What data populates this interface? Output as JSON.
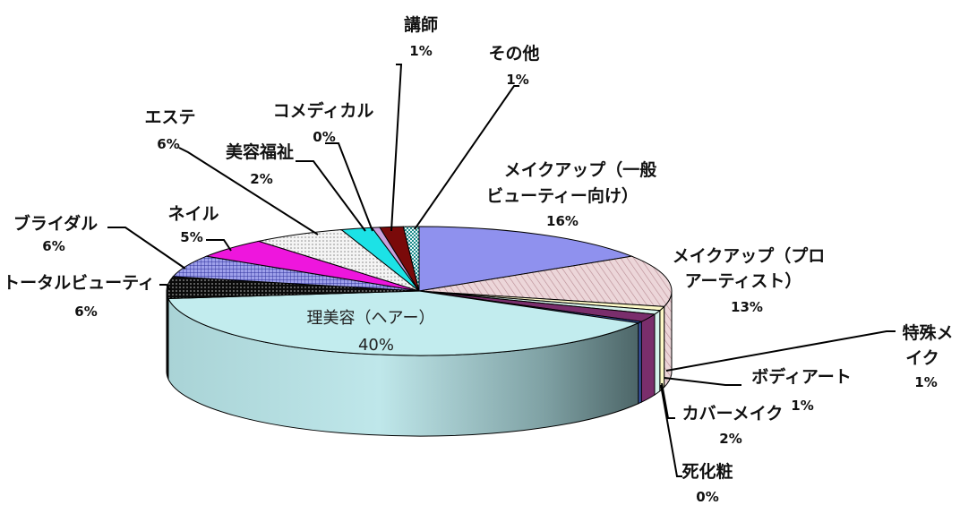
{
  "chart_data": {
    "type": "pie",
    "style": "3d-exploded-labels",
    "slices": [
      {
        "label": "メイクアップ（一般ビューティー向け）",
        "label_lines": [
          "メイクアップ（一般",
          "ビューティー向け）"
        ],
        "percent_text": "16%",
        "value": 16,
        "color": "#8f91ee",
        "pattern": "solid"
      },
      {
        "label": "メイクアップ（プロアーティスト）",
        "label_lines": [
          "メイクアップ（プロ",
          "アーティスト）"
        ],
        "percent_text": "13%",
        "value": 13,
        "color": "#e9d0d4",
        "pattern": "diag"
      },
      {
        "label": "特殊メイク",
        "label_lines": [
          "特殊メ",
          "イク"
        ],
        "percent_text": "1%",
        "value": 1,
        "color": "#fdf9c6",
        "pattern": "solid"
      },
      {
        "label": "ボディアート",
        "label_lines": [
          "ボディアート"
        ],
        "percent_text": "1%",
        "value": 1,
        "color": "#d6f2ec",
        "pattern": "solid"
      },
      {
        "label": "カバーメイク",
        "label_lines": [
          "カバーメイク"
        ],
        "percent_text": "2%",
        "value": 2,
        "color": "#7a2e6c",
        "pattern": "solid"
      },
      {
        "label": "死化粧",
        "label_lines": [
          "死化粧"
        ],
        "percent_text": "0%",
        "value": 0.4,
        "color": "#3b56a8",
        "pattern": "solid"
      },
      {
        "label": "理美容（ヘアー）",
        "label_lines": [
          "理美容（ヘアー）"
        ],
        "percent_text": "40%",
        "value": 40,
        "color": "#c2ecee",
        "pattern": "solid"
      },
      {
        "label": "トータルビューティ",
        "label_lines": [
          "トータルビューティ"
        ],
        "percent_text": "6%",
        "value": 5.5,
        "color": "#111111",
        "pattern": "dots-light"
      },
      {
        "label": "ブライダル",
        "label_lines": [
          "ブライダル"
        ],
        "percent_text": "6%",
        "value": 5.5,
        "color": "#8c8fe0",
        "pattern": "grid"
      },
      {
        "label": "ネイル",
        "label_lines": [
          "ネイル"
        ],
        "percent_text": "5%",
        "value": 5,
        "color": "#ee16dd",
        "pattern": "solid"
      },
      {
        "label": "エステ",
        "label_lines": [
          "エステ"
        ],
        "percent_text": "6%",
        "value": 6,
        "color": "#f2f2f2",
        "pattern": "dots-dark"
      },
      {
        "label": "美容福祉",
        "label_lines": [
          "美容福祉"
        ],
        "percent_text": "2%",
        "value": 2,
        "color": "#1ce2e6",
        "pattern": "solid"
      },
      {
        "label": "コメディカル",
        "label_lines": [
          "コメディカル"
        ],
        "percent_text": "0%",
        "value": 0.5,
        "color": "#c9a0dc",
        "pattern": "solid"
      },
      {
        "label": "講師",
        "label_lines": [
          "講師"
        ],
        "percent_text": "1%",
        "value": 1.5,
        "color": "#7a0a0a",
        "pattern": "solid"
      },
      {
        "label": "その他",
        "label_lines": [
          "その他"
        ],
        "percent_text": "1%",
        "value": 1,
        "color": "#3aa6a6",
        "pattern": "checker"
      }
    ]
  }
}
